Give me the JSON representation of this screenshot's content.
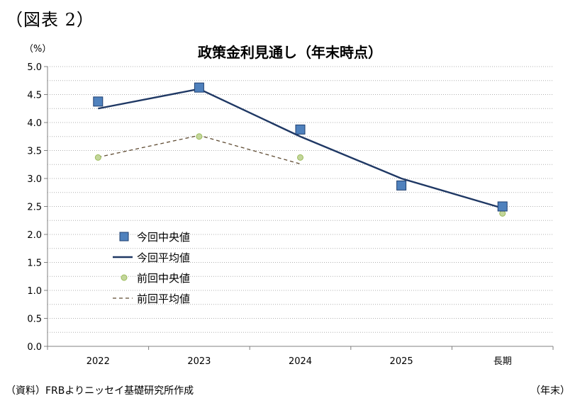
{
  "figure_label": "（図表 2）",
  "source_note": "（資料）FRBよりニッセイ基礎研究所作成",
  "colors": {
    "current_median": "#4f81bd",
    "current_median_edge": "#1f3f6f",
    "current_mean": "#1f3864",
    "previous_median": "#c3d69b",
    "previous_median_edge": "#9bbb59",
    "previous_mean": "#5f4b32",
    "grid": "#b0b0b0"
  },
  "chart_data": {
    "type": "line",
    "title": "政策金利見通し（年末時点）",
    "ylabel": "（%）",
    "xlabel": "（年末）",
    "categories": [
      "2022",
      "2023",
      "2024",
      "2025",
      "長期"
    ],
    "ylim": [
      0,
      5
    ],
    "ytick_step": 0.5,
    "ytick_labels": [
      "0.0",
      "0.5",
      "1.0",
      "1.5",
      "2.0",
      "2.5",
      "3.0",
      "3.5",
      "4.0",
      "4.5",
      "5.0"
    ],
    "grid": true,
    "legend_position": "left-middle",
    "series": [
      {
        "name": "今回中央値",
        "style": "square-marker",
        "values": [
          4.375,
          4.625,
          3.875,
          2.875,
          2.5
        ]
      },
      {
        "name": "今回平均値",
        "style": "solid-line",
        "values": [
          4.25,
          4.6,
          3.75,
          3.0,
          2.47
        ]
      },
      {
        "name": "前回中央値",
        "style": "round-marker",
        "values": [
          3.375,
          3.75,
          3.375,
          null,
          2.375
        ]
      },
      {
        "name": "前回平均値",
        "style": "dashed-line",
        "values": [
          3.38,
          3.77,
          3.26,
          null,
          null
        ]
      }
    ]
  }
}
